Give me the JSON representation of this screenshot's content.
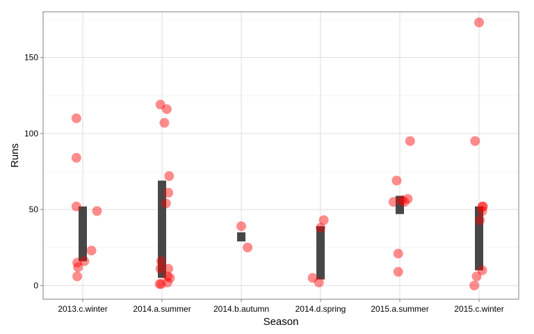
{
  "chart_data": {
    "type": "scatter",
    "title": "",
    "xlabel": "Season",
    "ylabel": "Runs",
    "categories": [
      "2013.c.winter",
      "2014.a.summer",
      "2014.b.autumn",
      "2014.d.spring",
      "2015.a.summer",
      "2015.c.winter"
    ],
    "ylim": [
      -9,
      180
    ],
    "yticks": [
      0,
      50,
      100,
      150
    ],
    "grid": true,
    "legend": "none",
    "point_color": "#ff0000",
    "point_opacity": 0.45,
    "bar_color": "#333333",
    "points": [
      {
        "category": "2013.c.winter",
        "jitter": -0.08,
        "y": 110
      },
      {
        "category": "2013.c.winter",
        "jitter": -0.08,
        "y": 84
      },
      {
        "category": "2013.c.winter",
        "jitter": -0.08,
        "y": 52
      },
      {
        "category": "2013.c.winter",
        "jitter": 0.18,
        "y": 49
      },
      {
        "category": "2013.c.winter",
        "jitter": 0.11,
        "y": 23
      },
      {
        "category": "2013.c.winter",
        "jitter": 0.02,
        "y": 16
      },
      {
        "category": "2013.c.winter",
        "jitter": -0.07,
        "y": 15
      },
      {
        "category": "2013.c.winter",
        "jitter": -0.06,
        "y": 12
      },
      {
        "category": "2013.c.winter",
        "jitter": -0.07,
        "y": 6
      },
      {
        "category": "2014.a.summer",
        "jitter": -0.02,
        "y": 119
      },
      {
        "category": "2014.a.summer",
        "jitter": 0.06,
        "y": 116
      },
      {
        "category": "2014.a.summer",
        "jitter": 0.03,
        "y": 107
      },
      {
        "category": "2014.a.summer",
        "jitter": 0.09,
        "y": 72
      },
      {
        "category": "2014.a.summer",
        "jitter": 0.08,
        "y": 61
      },
      {
        "category": "2014.a.summer",
        "jitter": 0.05,
        "y": 54
      },
      {
        "category": "2014.a.summer",
        "jitter": -0.01,
        "y": 16
      },
      {
        "category": "2014.a.summer",
        "jitter": -0.02,
        "y": 11
      },
      {
        "category": "2014.a.summer",
        "jitter": 0.08,
        "y": 11
      },
      {
        "category": "2014.a.summer",
        "jitter": 0.07,
        "y": 6
      },
      {
        "category": "2014.a.summer",
        "jitter": 0.1,
        "y": 5
      },
      {
        "category": "2014.a.summer",
        "jitter": 0.07,
        "y": 2
      },
      {
        "category": "2014.a.summer",
        "jitter": -0.03,
        "y": 1
      },
      {
        "category": "2014.a.summer",
        "jitter": -0.01,
        "y": 1
      },
      {
        "category": "2014.b.autumn",
        "jitter": 0.0,
        "y": 39
      },
      {
        "category": "2014.b.autumn",
        "jitter": 0.08,
        "y": 25
      },
      {
        "category": "2014.d.spring",
        "jitter": 0.04,
        "y": 43
      },
      {
        "category": "2014.d.spring",
        "jitter": 0.0,
        "y": 38
      },
      {
        "category": "2014.d.spring",
        "jitter": -0.1,
        "y": 5
      },
      {
        "category": "2014.d.spring",
        "jitter": -0.02,
        "y": 2
      },
      {
        "category": "2015.a.summer",
        "jitter": 0.13,
        "y": 95
      },
      {
        "category": "2015.a.summer",
        "jitter": -0.04,
        "y": 69
      },
      {
        "category": "2015.a.summer",
        "jitter": 0.1,
        "y": 57
      },
      {
        "category": "2015.a.summer",
        "jitter": 0.03,
        "y": 56
      },
      {
        "category": "2015.a.summer",
        "jitter": 0.06,
        "y": 55
      },
      {
        "category": "2015.a.summer",
        "jitter": -0.08,
        "y": 55
      },
      {
        "category": "2015.a.summer",
        "jitter": -0.02,
        "y": 21
      },
      {
        "category": "2015.a.summer",
        "jitter": -0.02,
        "y": 9
      },
      {
        "category": "2015.c.winter",
        "jitter": 0.0,
        "y": 173
      },
      {
        "category": "2015.c.winter",
        "jitter": -0.05,
        "y": 95
      },
      {
        "category": "2015.c.winter",
        "jitter": 0.04,
        "y": 52
      },
      {
        "category": "2015.c.winter",
        "jitter": 0.05,
        "y": 52
      },
      {
        "category": "2015.c.winter",
        "jitter": 0.04,
        "y": 49
      },
      {
        "category": "2015.c.winter",
        "jitter": 0.01,
        "y": 43
      },
      {
        "category": "2015.c.winter",
        "jitter": 0.04,
        "y": 10
      },
      {
        "category": "2015.c.winter",
        "jitter": -0.03,
        "y": 6
      },
      {
        "category": "2015.c.winter",
        "jitter": -0.06,
        "y": 0
      }
    ],
    "ranges": [
      {
        "category": "2013.c.winter",
        "low": 16,
        "high": 52
      },
      {
        "category": "2014.a.summer",
        "low": 5,
        "high": 69
      },
      {
        "category": "2014.b.autumn",
        "low": 29,
        "high": 35
      },
      {
        "category": "2014.d.spring",
        "low": 4,
        "high": 39
      },
      {
        "category": "2015.a.summer",
        "low": 47,
        "high": 59
      },
      {
        "category": "2015.c.winter",
        "low": 10,
        "high": 52
      }
    ]
  }
}
